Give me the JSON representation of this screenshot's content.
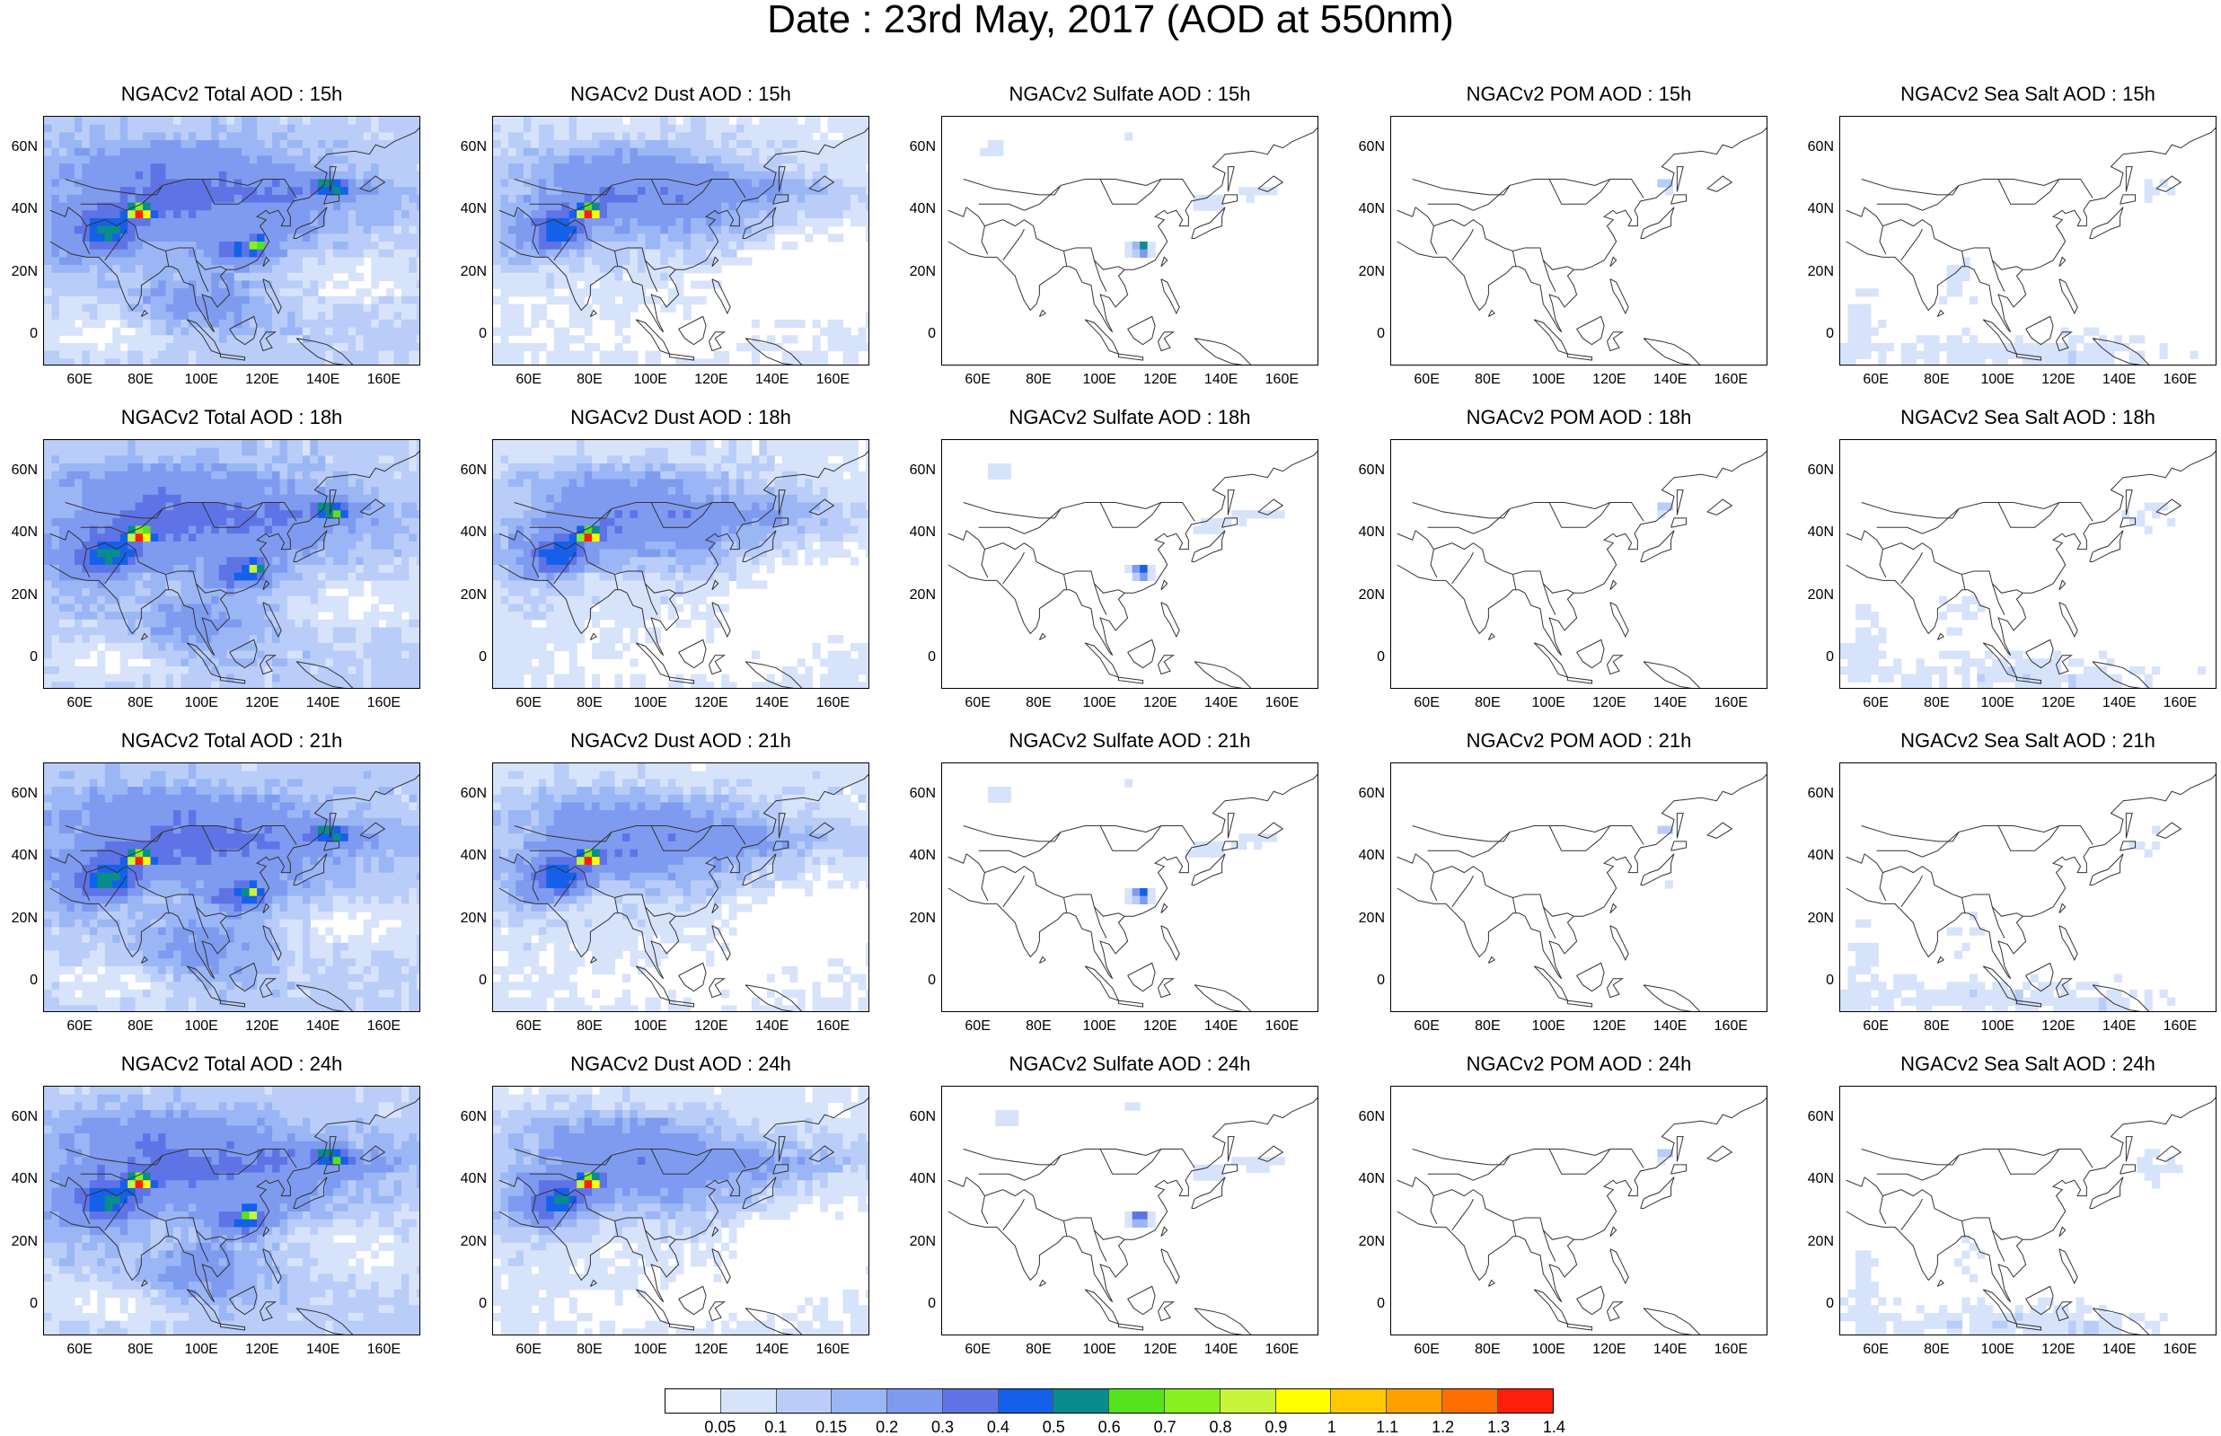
{
  "figure_title": "Date : 23rd May, 2017 (AOD at 550nm)",
  "lat_ticks": [
    "60N",
    "40N",
    "20N",
    "0"
  ],
  "lon_ticks": [
    "60E",
    "80E",
    "100E",
    "120E",
    "140E",
    "160E"
  ],
  "colorbar": {
    "labels": [
      "0.05",
      "0.1",
      "0.15",
      "0.2",
      "0.3",
      "0.4",
      "0.5",
      "0.6",
      "0.7",
      "0.8",
      "0.9",
      "1",
      "1.1",
      "1.2",
      "1.3",
      "1.4"
    ],
    "colors": [
      "#ffffff",
      "#d7e3fb",
      "#b9cdf8",
      "#9bb6f5",
      "#7e9bf0",
      "#5e74e6",
      "#1560ea",
      "#0a8c8c",
      "#55e31e",
      "#88f01c",
      "#c8f53a",
      "#ffff00",
      "#ffc800",
      "#ffa000",
      "#ff6e00",
      "#ff1e0a"
    ]
  },
  "grid": {
    "rows": [
      {
        "time": "15h",
        "panels": [
          {
            "title": "NGACv2 Total AOD : 15h",
            "species": "total"
          },
          {
            "title": "NGACv2 Dust AOD : 15h",
            "species": "dust"
          },
          {
            "title": "NGACv2 Sulfate AOD : 15h",
            "species": "sulfate"
          },
          {
            "title": "NGACv2 POM AOD : 15h",
            "species": "pom"
          },
          {
            "title": "NGACv2 Sea Salt AOD : 15h",
            "species": "seasalt"
          }
        ]
      },
      {
        "time": "18h",
        "panels": [
          {
            "title": "NGACv2 Total AOD : 18h",
            "species": "total"
          },
          {
            "title": "NGACv2 Dust AOD : 18h",
            "species": "dust"
          },
          {
            "title": "NGACv2 Sulfate AOD : 18h",
            "species": "sulfate"
          },
          {
            "title": "NGACv2 POM AOD : 18h",
            "species": "pom"
          },
          {
            "title": "NGACv2 Sea Salt AOD : 18h",
            "species": "seasalt"
          }
        ]
      },
      {
        "time": "21h",
        "panels": [
          {
            "title": "NGACv2 Total AOD : 21h",
            "species": "total"
          },
          {
            "title": "NGACv2 Dust AOD : 21h",
            "species": "dust"
          },
          {
            "title": "NGACv2 Sulfate AOD : 21h",
            "species": "sulfate"
          },
          {
            "title": "NGACv2 POM AOD : 21h",
            "species": "pom"
          },
          {
            "title": "NGACv2 Sea Salt AOD : 21h",
            "species": "seasalt"
          }
        ]
      },
      {
        "time": "24h",
        "panels": [
          {
            "title": "NGACv2 Total AOD : 24h",
            "species": "total"
          },
          {
            "title": "NGACv2 Dust AOD : 24h",
            "species": "dust"
          },
          {
            "title": "NGACv2 Sulfate AOD : 24h",
            "species": "sulfate"
          },
          {
            "title": "NGACv2 POM AOD : 24h",
            "species": "pom"
          },
          {
            "title": "NGACv2 Sea Salt  AOD : 24h",
            "species": "seasalt"
          }
        ]
      }
    ]
  }
}
